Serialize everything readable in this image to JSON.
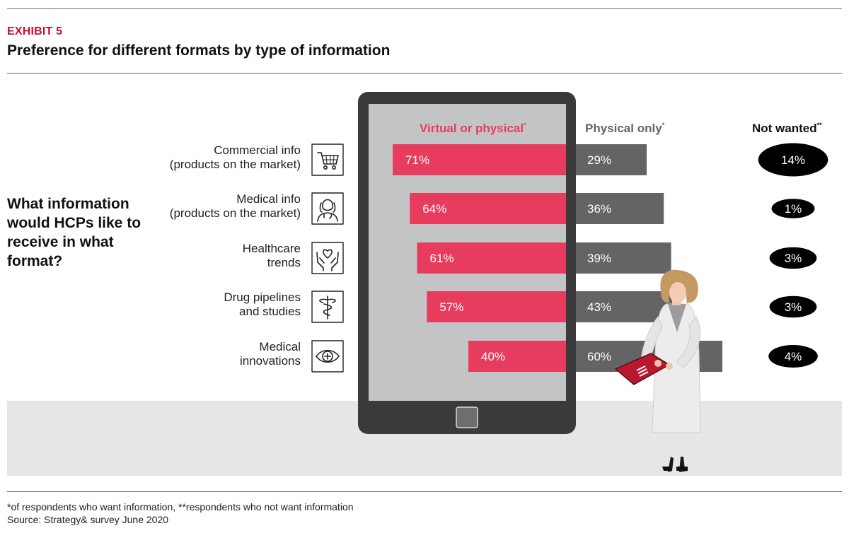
{
  "header": {
    "exhibit": "EXHIBIT 5",
    "title": "Preference for different formats by type of information"
  },
  "question": "What information would HCPs like to receive in what format?",
  "footer": {
    "footnote": "*of respondents who want information, **respondents who not want information",
    "source": "Source: Strategy& survey June 2020"
  },
  "colors": {
    "virtual": "#e83c5f",
    "physical": "#646466",
    "not_wanted": "#000000",
    "accent": "#c8102e"
  },
  "chart_data": {
    "type": "bar",
    "orientation": "horizontal",
    "categories": [
      {
        "lines": [
          "Commercial info",
          "(products on the market)"
        ],
        "icon": "shopping-cart-icon"
      },
      {
        "lines": [
          "Medical info",
          "(products on the market)"
        ],
        "icon": "doctor-icon"
      },
      {
        "lines": [
          "Healthcare",
          "trends"
        ],
        "icon": "heart-in-hands-icon"
      },
      {
        "lines": [
          "Drug pipelines",
          "and studies"
        ],
        "icon": "caduceus-icon"
      },
      {
        "lines": [
          "Medical",
          "innovations"
        ],
        "icon": "eye-icon"
      }
    ],
    "series": [
      {
        "name": "Virtual or physical",
        "marker": "*",
        "values": [
          71,
          64,
          61,
          57,
          40
        ],
        "labels": [
          "71%",
          "64%",
          "61%",
          "57%",
          "40%"
        ]
      },
      {
        "name": "Physical only",
        "marker": "*",
        "values": [
          29,
          36,
          39,
          43,
          60
        ],
        "labels": [
          "29%",
          "36%",
          "39%",
          "43%",
          "60%"
        ]
      },
      {
        "name": "Not wanted",
        "marker": "**",
        "values": [
          14,
          1,
          3,
          3,
          4
        ],
        "labels": [
          "14%",
          "1%",
          "3%",
          "3%",
          "4%"
        ]
      }
    ],
    "unit": "%"
  }
}
